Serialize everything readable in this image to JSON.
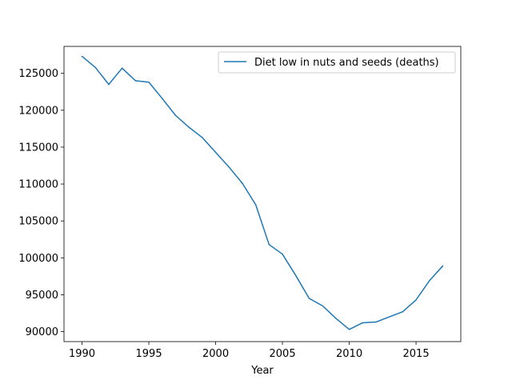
{
  "chart_data": {
    "type": "line",
    "title": "",
    "xlabel": "Year",
    "ylabel": "",
    "xlim": [
      1988.65,
      2018.35
    ],
    "ylim": [
      88650,
      128650
    ],
    "x_ticks": [
      1990,
      1995,
      2000,
      2005,
      2010,
      2015
    ],
    "y_ticks": [
      90000,
      95000,
      100000,
      105000,
      110000,
      115000,
      120000,
      125000
    ],
    "grid": false,
    "legend_position": "top-right",
    "colors": {
      "series": "#1f77b4"
    },
    "series": [
      {
        "name": "Diet low in nuts and seeds (deaths)",
        "x": [
          1990,
          1991,
          1992,
          1993,
          1994,
          1995,
          1996,
          1997,
          1998,
          1999,
          2000,
          2001,
          2002,
          2003,
          2004,
          2005,
          2006,
          2007,
          2008,
          2009,
          2010,
          2011,
          2012,
          2013,
          2014,
          2015,
          2016,
          2017
        ],
        "values": [
          127300,
          125800,
          123500,
          125700,
          124000,
          123800,
          121600,
          119300,
          117700,
          116300,
          114300,
          112300,
          110100,
          107200,
          101800,
          100500,
          97600,
          94500,
          93500,
          91800,
          90300,
          91200,
          91300,
          92000,
          92700,
          94300,
          96900,
          98900
        ]
      }
    ]
  }
}
